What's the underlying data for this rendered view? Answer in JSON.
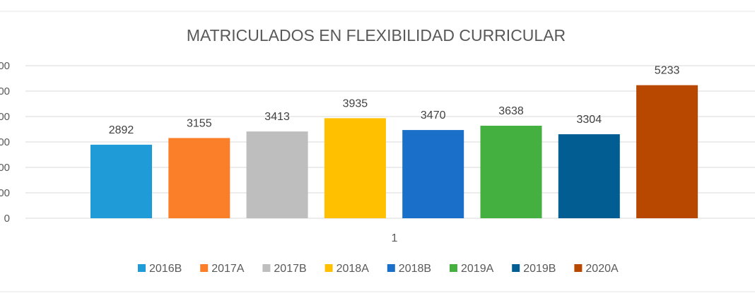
{
  "chart_data": {
    "type": "bar",
    "title": "MATRICULADOS EN FLEXIBILIDAD CURRICULAR",
    "categories": [
      "1"
    ],
    "series": [
      {
        "name": "2016B",
        "values": [
          2892
        ],
        "color": "#1F9BD7"
      },
      {
        "name": "2017A",
        "values": [
          3155
        ],
        "color": "#FB7E29"
      },
      {
        "name": "2017B",
        "values": [
          3413
        ],
        "color": "#BEBEBE"
      },
      {
        "name": "2018A",
        "values": [
          3935
        ],
        "color": "#FFC000"
      },
      {
        "name": "2018B",
        "values": [
          3470
        ],
        "color": "#1A70C8"
      },
      {
        "name": "2019A",
        "values": [
          3638
        ],
        "color": "#43B040"
      },
      {
        "name": "2019B",
        "values": [
          3304
        ],
        "color": "#025D93"
      },
      {
        "name": "2020A",
        "values": [
          5233
        ],
        "color": "#B84700"
      }
    ],
    "ylim": [
      0,
      6000
    ],
    "ytick_labels": [
      "0",
      "00",
      "00",
      "00",
      "00",
      "00",
      "00"
    ],
    "grid": true,
    "legend_position": "bottom"
  }
}
